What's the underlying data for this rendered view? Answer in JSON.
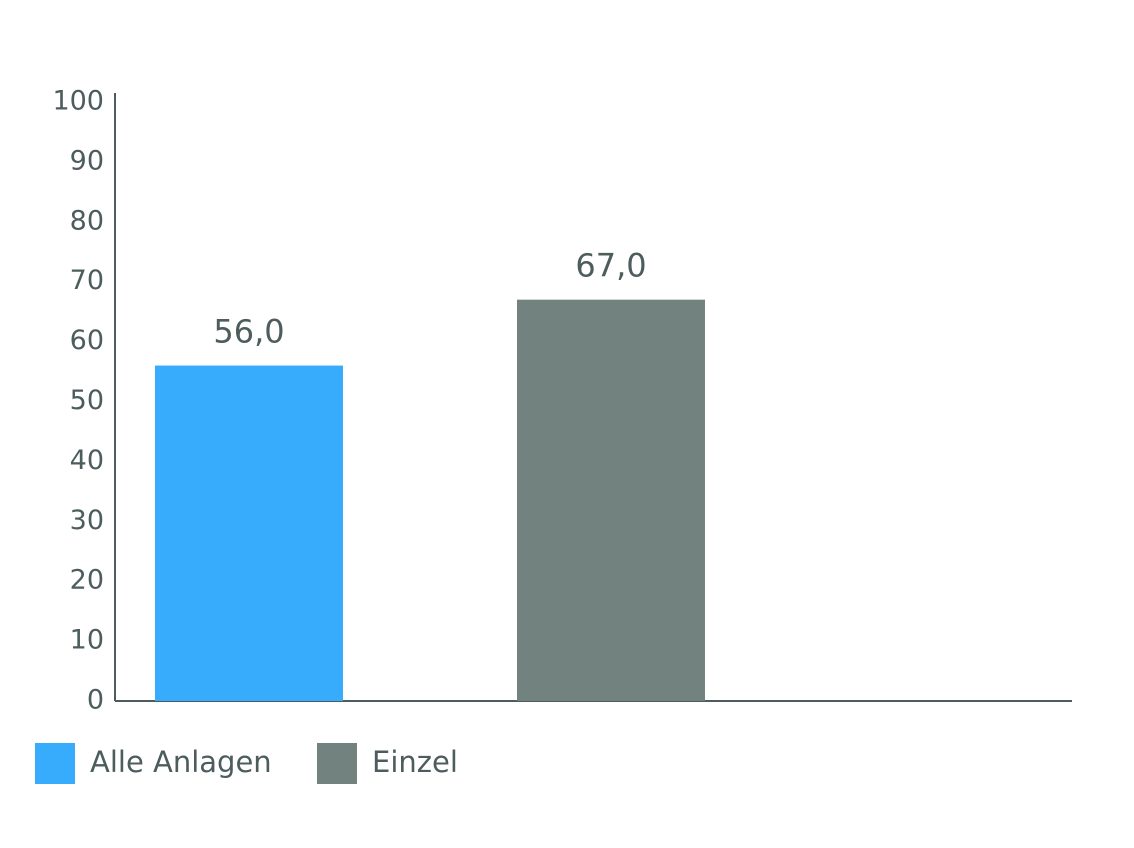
{
  "chart_data": {
    "type": "bar",
    "series": [
      {
        "name": "Alle Anlagen",
        "color": "#38acfc",
        "values": [
          56
        ],
        "value_labels": [
          "56,0"
        ]
      },
      {
        "name": "Einzel",
        "color": "#72837f",
        "values": [
          67
        ],
        "value_labels": [
          "67,0"
        ]
      }
    ],
    "ylim": [
      0,
      100
    ],
    "yticks": [
      0,
      10,
      20,
      30,
      40,
      50,
      60,
      70,
      80,
      90,
      100
    ],
    "grid": false,
    "legend": "bottom-left"
  }
}
